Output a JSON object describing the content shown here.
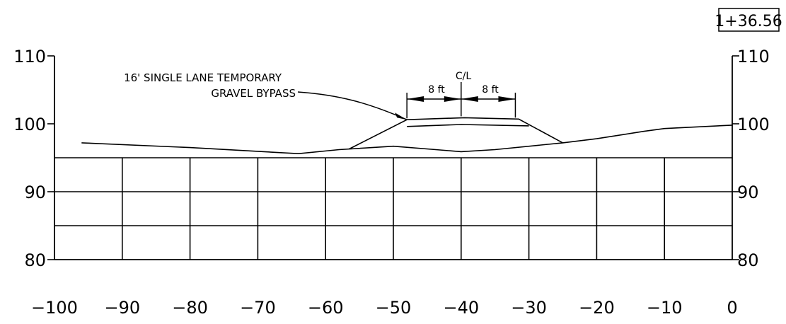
{
  "station": "1+36.56",
  "callout": {
    "line1": "16' SINGLE LANE TEMPORARY",
    "line2": "GRAVEL BYPASS"
  },
  "centerline_label": "C/L",
  "dimensions": {
    "left": "8 ft",
    "right": "8 ft"
  },
  "chart_data": {
    "type": "line",
    "xlim": [
      -100,
      0
    ],
    "ylim": [
      80,
      110
    ],
    "x_ticks": [
      -100,
      -90,
      -80,
      -70,
      -60,
      -50,
      -40,
      -30,
      -20,
      -10,
      0
    ],
    "x_tick_labels": [
      "−100",
      "−90",
      "−80",
      "−70",
      "−60",
      "−50",
      "−40",
      "−30",
      "−20",
      "−10",
      "0"
    ],
    "y_ticks": [
      80,
      90,
      100,
      110
    ],
    "y_tick_labels_left": [
      "80",
      "90",
      "100",
      "110"
    ],
    "y_tick_labels_right": [
      "80",
      "90",
      "100",
      "110"
    ],
    "grid_x": [
      -90,
      -80,
      -70,
      -60,
      -50,
      -40,
      -30,
      -20,
      -10
    ],
    "grid_y": [
      85,
      90,
      95
    ],
    "series": [
      {
        "points": [
          [
            -96,
            97.2
          ],
          [
            -80,
            96.5
          ],
          [
            -64,
            95.6
          ],
          [
            -58,
            96.2
          ],
          [
            -50,
            96.7
          ],
          [
            -40,
            95.9
          ],
          [
            -35,
            96.2
          ],
          [
            -25,
            97.2
          ],
          [
            -20,
            97.8
          ],
          [
            -13,
            98.9
          ],
          [
            -10,
            99.3
          ],
          [
            0,
            99.8
          ]
        ]
      },
      {
        "points": [
          [
            -56.5,
            96.3
          ],
          [
            -48,
            100.6
          ],
          [
            -39.5,
            100.9
          ],
          [
            -31.5,
            100.7
          ],
          [
            -25,
            97.2
          ]
        ]
      },
      {
        "points": [
          [
            -48,
            99.6
          ],
          [
            -40,
            99.9
          ],
          [
            -30,
            99.7
          ]
        ]
      }
    ],
    "centerline_x": -40,
    "dimension_extent": [
      -48,
      -32
    ]
  }
}
